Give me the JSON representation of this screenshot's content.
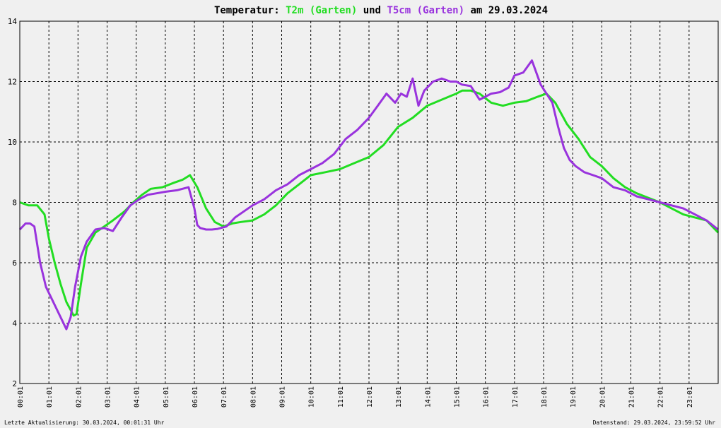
{
  "chart_data": {
    "type": "line",
    "title_parts": {
      "prefix": "Temperatur:",
      "s1": "T2m (Garten)",
      "mid": "und",
      "s2": "T5cm (Garten)",
      "suffix": "am 29.03.2024"
    },
    "footer_left": "Letzte Aktualisierung: 30.03.2024, 00:01:31 Uhr",
    "footer_right": "Datenstand: 29.03.2024, 23:59:52 Uhr",
    "x_unit": "hours",
    "xlim": [
      0,
      24
    ],
    "ylim": [
      2,
      14
    ],
    "grid": true,
    "x_tick_labels": [
      "00:01",
      "01:01",
      "02:01",
      "03:01",
      "04:01",
      "05:01",
      "06:01",
      "07:01",
      "08:01",
      "09:01",
      "10:01",
      "11:01",
      "12:01",
      "13:01",
      "14:01",
      "15:01",
      "16:01",
      "17:01",
      "18:01",
      "19:01",
      "20:01",
      "21:01",
      "22:01",
      "23:01"
    ],
    "y_ticks": [
      2,
      4,
      6,
      8,
      10,
      12,
      14
    ],
    "series": [
      {
        "name": "T2m (Garten)",
        "color": "#22dd22",
        "x": [
          0,
          0.3,
          0.6,
          0.85,
          1.0,
          1.2,
          1.4,
          1.6,
          1.85,
          1.95,
          2.1,
          2.3,
          2.6,
          2.9,
          3.2,
          3.6,
          3.9,
          4.2,
          4.5,
          4.9,
          5.3,
          5.6,
          5.85,
          6.1,
          6.4,
          6.7,
          7.0,
          7.3,
          7.6,
          8.0,
          8.4,
          8.8,
          9.2,
          9.6,
          10.0,
          10.5,
          11.0,
          11.5,
          12.0,
          12.5,
          13.0,
          13.5,
          14.0,
          14.5,
          15.0,
          15.2,
          15.5,
          15.8,
          16.2,
          16.6,
          17.0,
          17.4,
          17.8,
          18.1,
          18.4,
          18.8,
          19.2,
          19.6,
          20.0,
          20.4,
          20.8,
          21.2,
          21.6,
          22.0,
          22.4,
          22.8,
          23.2,
          23.6,
          24.0
        ],
        "values": [
          8.0,
          7.9,
          7.9,
          7.6,
          6.8,
          6.0,
          5.3,
          4.7,
          4.25,
          4.3,
          5.3,
          6.5,
          7.0,
          7.2,
          7.4,
          7.7,
          8.0,
          8.25,
          8.45,
          8.5,
          8.65,
          8.75,
          8.9,
          8.5,
          7.8,
          7.35,
          7.2,
          7.3,
          7.35,
          7.4,
          7.6,
          7.9,
          8.3,
          8.6,
          8.9,
          9.0,
          9.1,
          9.3,
          9.5,
          9.9,
          10.5,
          10.8,
          11.2,
          11.4,
          11.6,
          11.7,
          11.7,
          11.6,
          11.3,
          11.2,
          11.3,
          11.35,
          11.5,
          11.6,
          11.3,
          10.6,
          10.1,
          9.5,
          9.2,
          8.8,
          8.5,
          8.3,
          8.15,
          8.0,
          7.8,
          7.6,
          7.5,
          7.4,
          7.0
        ]
      },
      {
        "name": "T5cm (Garten)",
        "color": "#9933dd",
        "x": [
          0,
          0.2,
          0.35,
          0.5,
          0.7,
          0.9,
          1.1,
          1.3,
          1.45,
          1.6,
          1.75,
          1.9,
          2.1,
          2.3,
          2.6,
          2.9,
          3.2,
          3.5,
          3.8,
          4.1,
          4.4,
          4.7,
          5.0,
          5.4,
          5.8,
          6.0,
          6.1,
          6.2,
          6.4,
          6.6,
          6.8,
          7.1,
          7.4,
          7.7,
          8.0,
          8.4,
          8.8,
          9.2,
          9.6,
          10.0,
          10.4,
          10.8,
          11.2,
          11.6,
          12.0,
          12.3,
          12.6,
          12.9,
          13.1,
          13.3,
          13.5,
          13.7,
          13.9,
          14.2,
          14.5,
          14.8,
          15.0,
          15.2,
          15.5,
          15.8,
          16.0,
          16.2,
          16.5,
          16.8,
          17.0,
          17.3,
          17.6,
          17.9,
          18.1,
          18.3,
          18.5,
          18.7,
          18.9,
          19.1,
          19.4,
          19.7,
          20.0,
          20.4,
          20.8,
          21.2,
          21.6,
          22.0,
          22.4,
          22.8,
          23.2,
          23.6,
          24.0
        ],
        "values": [
          7.1,
          7.3,
          7.3,
          7.2,
          6.0,
          5.2,
          4.8,
          4.4,
          4.1,
          3.8,
          4.2,
          5.2,
          6.2,
          6.7,
          7.1,
          7.15,
          7.05,
          7.5,
          7.9,
          8.1,
          8.25,
          8.3,
          8.35,
          8.4,
          8.5,
          7.8,
          7.25,
          7.15,
          7.1,
          7.1,
          7.12,
          7.2,
          7.5,
          7.7,
          7.9,
          8.1,
          8.4,
          8.6,
          8.9,
          9.1,
          9.3,
          9.6,
          10.1,
          10.4,
          10.8,
          11.2,
          11.6,
          11.3,
          11.6,
          11.5,
          12.1,
          11.2,
          11.7,
          12.0,
          12.1,
          12.0,
          12.0,
          11.9,
          11.85,
          11.4,
          11.5,
          11.6,
          11.65,
          11.8,
          12.2,
          12.3,
          12.7,
          11.9,
          11.6,
          11.3,
          10.5,
          9.8,
          9.4,
          9.2,
          9.0,
          8.9,
          8.8,
          8.5,
          8.4,
          8.2,
          8.1,
          8.0,
          7.9,
          7.8,
          7.6,
          7.4,
          7.1
        ]
      }
    ]
  }
}
